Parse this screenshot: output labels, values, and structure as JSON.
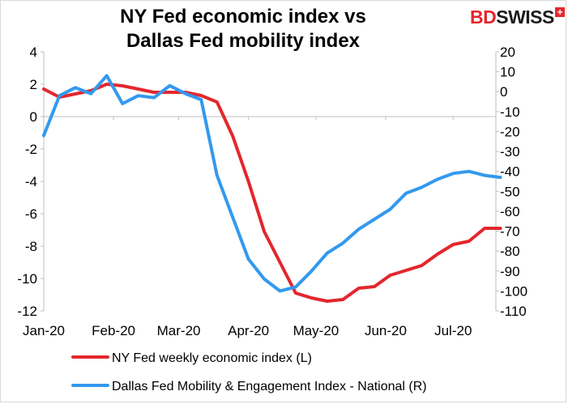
{
  "chart_data": {
    "type": "line",
    "title_lines": [
      "NY Fed economic index vs",
      "Dallas Fed mobility index"
    ],
    "brand": {
      "bd": "BD",
      "swiss": "SWISS",
      "plus": "+"
    },
    "x_tick_labels": [
      "Jan-20",
      "Feb-20",
      "Mar-20",
      "Apr-20",
      "May-20",
      "Jun-20",
      "Jul-20"
    ],
    "x_tick_dates": [
      "2020-01-01",
      "2020-02-01",
      "2020-03-01",
      "2020-04-01",
      "2020-05-01",
      "2020-06-01",
      "2020-07-01"
    ],
    "xlim": [
      "2020-01-01",
      "2020-07-20"
    ],
    "left_axis": {
      "ylim": [
        -12,
        4
      ],
      "ticks": [
        -12,
        -10,
        -8,
        -6,
        -4,
        -2,
        0,
        2,
        4
      ]
    },
    "right_axis": {
      "ylim": [
        -110,
        20
      ],
      "ticks": [
        -110,
        -100,
        -90,
        -80,
        -70,
        -60,
        -50,
        -40,
        -30,
        -20,
        -10,
        0,
        10,
        20
      ]
    },
    "grid": false,
    "legend_position": "bottom",
    "series": [
      {
        "name": "NY Fed weekly economic index (L)",
        "axis": "left",
        "color": "#e3272d",
        "points": [
          [
            "2020-01-01",
            1.7
          ],
          [
            "2020-01-08",
            1.2
          ],
          [
            "2020-01-15",
            1.4
          ],
          [
            "2020-01-22",
            1.6
          ],
          [
            "2020-01-29",
            2.0
          ],
          [
            "2020-02-05",
            1.9
          ],
          [
            "2020-02-12",
            1.7
          ],
          [
            "2020-02-19",
            1.5
          ],
          [
            "2020-02-26",
            1.5
          ],
          [
            "2020-03-04",
            1.5
          ],
          [
            "2020-03-11",
            1.3
          ],
          [
            "2020-03-18",
            0.9
          ],
          [
            "2020-03-25",
            -1.2
          ],
          [
            "2020-04-01",
            -4.0
          ],
          [
            "2020-04-08",
            -7.1
          ],
          [
            "2020-04-15",
            -9.0
          ],
          [
            "2020-04-22",
            -10.9
          ],
          [
            "2020-04-29",
            -11.2
          ],
          [
            "2020-05-06",
            -11.4
          ],
          [
            "2020-05-13",
            -11.3
          ],
          [
            "2020-05-20",
            -10.6
          ],
          [
            "2020-05-27",
            -10.5
          ],
          [
            "2020-06-03",
            -9.8
          ],
          [
            "2020-06-10",
            -9.5
          ],
          [
            "2020-06-17",
            -9.2
          ],
          [
            "2020-06-24",
            -8.5
          ],
          [
            "2020-07-01",
            -7.9
          ],
          [
            "2020-07-08",
            -7.7
          ],
          [
            "2020-07-15",
            -6.9
          ],
          [
            "2020-07-22",
            -6.9
          ]
        ]
      },
      {
        "name": "Dallas Fed Mobility & Engagement Index - National (R)",
        "axis": "right",
        "color": "#3399ee",
        "points": [
          [
            "2020-01-01",
            -22
          ],
          [
            "2020-01-08",
            -2
          ],
          [
            "2020-01-15",
            2
          ],
          [
            "2020-01-22",
            -1
          ],
          [
            "2020-01-29",
            8
          ],
          [
            "2020-02-05",
            -6
          ],
          [
            "2020-02-12",
            -2
          ],
          [
            "2020-02-19",
            -3
          ],
          [
            "2020-02-26",
            3
          ],
          [
            "2020-03-04",
            -1
          ],
          [
            "2020-03-11",
            -4
          ],
          [
            "2020-03-18",
            -42
          ],
          [
            "2020-03-25",
            -63
          ],
          [
            "2020-04-01",
            -84
          ],
          [
            "2020-04-08",
            -94
          ],
          [
            "2020-04-15",
            -100
          ],
          [
            "2020-04-22",
            -98
          ],
          [
            "2020-04-29",
            -90
          ],
          [
            "2020-05-06",
            -81
          ],
          [
            "2020-05-13",
            -76
          ],
          [
            "2020-05-20",
            -69
          ],
          [
            "2020-05-27",
            -64
          ],
          [
            "2020-06-03",
            -59
          ],
          [
            "2020-06-10",
            -51
          ],
          [
            "2020-06-17",
            -48
          ],
          [
            "2020-06-24",
            -44
          ],
          [
            "2020-07-01",
            -41
          ],
          [
            "2020-07-08",
            -40
          ],
          [
            "2020-07-15",
            -42
          ],
          [
            "2020-07-22",
            -43
          ]
        ]
      }
    ]
  }
}
